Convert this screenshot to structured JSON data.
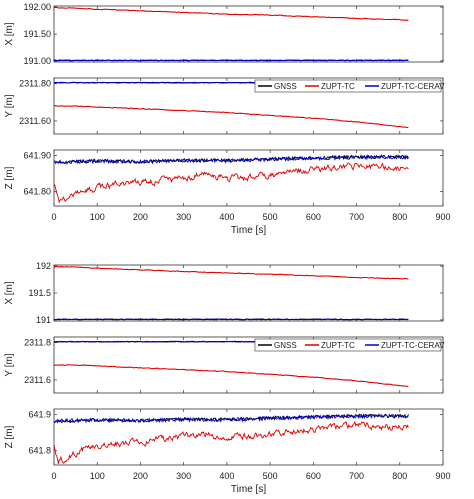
{
  "chart_data": [
    {
      "type": "line",
      "name": "top-figure",
      "xlabel": "Time [s]",
      "xlim": [
        0,
        900
      ],
      "xticks": [
        "0",
        "100",
        "200",
        "300",
        "400",
        "500",
        "600",
        "700",
        "800",
        "900"
      ],
      "legend": {
        "placement": "top-right-of-y-panel",
        "entries": [
          "GNSS",
          "ZUPT-TC",
          "ZUPT-TC-CERAV"
        ]
      },
      "panels": [
        {
          "ylabel": "X [m]",
          "ylim": [
            190.98,
            192.02
          ],
          "yticks": [
            {
              "v": 192.0,
              "label": "192.00"
            },
            {
              "v": 191.5,
              "label": "191.50"
            },
            {
              "v": 191.0,
              "label": "191.00"
            }
          ],
          "series": [
            {
              "name": "GNSS",
              "color": "#000000",
              "x": [
                0,
                820
              ],
              "y": [
                191.01,
                191.01
              ]
            },
            {
              "name": "ZUPT-TC",
              "color": "#e00000",
              "x": [
                0,
                50,
                100,
                200,
                300,
                400,
                500,
                600,
                700,
                820
              ],
              "y": [
                191.99,
                191.98,
                191.96,
                191.93,
                191.9,
                191.87,
                191.85,
                191.82,
                191.79,
                191.76
              ]
            },
            {
              "name": "ZUPT-TC-CERAV",
              "color": "#0000cc",
              "x": [
                0,
                820
              ],
              "y": [
                191.01,
                191.01
              ]
            }
          ]
        },
        {
          "ylabel": "Y [m]",
          "ylim": [
            2311.53,
            2311.83
          ],
          "yticks": [
            {
              "v": 2311.8,
              "label": "2311.80"
            },
            {
              "v": 2311.6,
              "label": "2311.60"
            }
          ],
          "series": [
            {
              "name": "GNSS",
              "color": "#000000",
              "x": [
                0,
                820
              ],
              "y": [
                2311.805,
                2311.805
              ]
            },
            {
              "name": "ZUPT-TC",
              "color": "#e00000",
              "x": [
                0,
                50,
                100,
                200,
                300,
                400,
                500,
                600,
                700,
                800,
                820
              ],
              "y": [
                2311.68,
                2311.68,
                2311.675,
                2311.665,
                2311.655,
                2311.645,
                2311.63,
                2311.615,
                2311.595,
                2311.57,
                2311.565
              ]
            },
            {
              "name": "ZUPT-TC-CERAV",
              "color": "#0000cc",
              "x": [
                0,
                820
              ],
              "y": [
                2311.805,
                2311.805
              ]
            }
          ]
        },
        {
          "ylabel": "Z [m]",
          "ylim": [
            641.76,
            641.915
          ],
          "yticks": [
            {
              "v": 641.9,
              "label": "641.90"
            },
            {
              "v": 641.8,
              "label": "641.80"
            }
          ],
          "series": [
            {
              "name": "GNSS",
              "color": "#000000",
              "x": [
                0,
                100,
                200,
                300,
                400,
                500,
                600,
                700,
                820
              ],
              "y": [
                641.88,
                641.885,
                641.882,
                641.887,
                641.886,
                641.89,
                641.893,
                641.896,
                641.896
              ]
            },
            {
              "name": "ZUPT-TC",
              "color": "#e00000",
              "x": [
                0,
                10,
                30,
                60,
                100,
                150,
                200,
                250,
                300,
                350,
                400,
                450,
                500,
                550,
                600,
                650,
                700,
                750,
                800,
                820
              ],
              "y": [
                641.82,
                641.77,
                641.78,
                641.8,
                641.81,
                641.82,
                641.825,
                641.83,
                641.84,
                641.845,
                641.835,
                641.84,
                641.845,
                641.855,
                641.86,
                641.865,
                641.87,
                641.868,
                641.866,
                641.865
              ]
            },
            {
              "name": "ZUPT-TC-CERAV",
              "color": "#0000cc",
              "x": [
                0,
                100,
                200,
                300,
                400,
                500,
                600,
                700,
                820
              ],
              "y": [
                641.882,
                641.884,
                641.883,
                641.886,
                641.885,
                641.889,
                641.892,
                641.895,
                641.895
              ]
            }
          ]
        }
      ]
    },
    {
      "type": "line",
      "name": "bottom-figure",
      "xlabel": "Time [s]",
      "xlim": [
        0,
        900
      ],
      "xticks": [
        "0",
        "100",
        "200",
        "300",
        "400",
        "500",
        "600",
        "700",
        "800",
        "900"
      ],
      "legend": {
        "placement": "top-right-of-y-panel",
        "entries": [
          "GNSS",
          "ZUPT-TC",
          "ZUPT-TC-CERAV"
        ]
      },
      "panels": [
        {
          "ylabel": "X [m]",
          "ylim": [
            190.98,
            192.02
          ],
          "yticks": [
            {
              "v": 192.0,
              "label": "192"
            },
            {
              "v": 191.5,
              "label": "191.5"
            },
            {
              "v": 191.0,
              "label": "191"
            }
          ],
          "series": [
            {
              "name": "GNSS",
              "color": "#000000",
              "x": [
                0,
                820
              ],
              "y": [
                191.01,
                191.01
              ]
            },
            {
              "name": "ZUPT-TC",
              "color": "#e00000",
              "x": [
                0,
                50,
                100,
                200,
                300,
                400,
                500,
                600,
                700,
                820
              ],
              "y": [
                191.99,
                191.98,
                191.96,
                191.93,
                191.9,
                191.87,
                191.85,
                191.82,
                191.79,
                191.76
              ]
            },
            {
              "name": "ZUPT-TC-CERAV",
              "color": "#0000cc",
              "x": [
                0,
                820
              ],
              "y": [
                191.01,
                191.01
              ]
            }
          ]
        },
        {
          "ylabel": "Y [m]",
          "ylim": [
            2311.53,
            2311.83
          ],
          "yticks": [
            {
              "v": 2311.8,
              "label": "2311.8"
            },
            {
              "v": 2311.6,
              "label": "2311.6"
            }
          ],
          "series": [
            {
              "name": "GNSS",
              "color": "#000000",
              "x": [
                0,
                820
              ],
              "y": [
                2311.805,
                2311.805
              ]
            },
            {
              "name": "ZUPT-TC",
              "color": "#e00000",
              "x": [
                0,
                50,
                100,
                200,
                300,
                400,
                500,
                600,
                700,
                800,
                820
              ],
              "y": [
                2311.68,
                2311.68,
                2311.675,
                2311.665,
                2311.655,
                2311.645,
                2311.63,
                2311.615,
                2311.595,
                2311.57,
                2311.565
              ]
            },
            {
              "name": "ZUPT-TC-CERAV",
              "color": "#0000cc",
              "x": [
                0,
                820
              ],
              "y": [
                2311.805,
                2311.805
              ]
            }
          ]
        },
        {
          "ylabel": "Z [m]",
          "ylim": [
            641.76,
            641.915
          ],
          "yticks": [
            {
              "v": 641.9,
              "label": "641.9"
            },
            {
              "v": 641.8,
              "label": "641.8"
            }
          ],
          "series": [
            {
              "name": "GNSS",
              "color": "#000000",
              "x": [
                0,
                100,
                200,
                300,
                400,
                500,
                600,
                700,
                820
              ],
              "y": [
                641.88,
                641.885,
                641.882,
                641.887,
                641.886,
                641.89,
                641.893,
                641.896,
                641.896
              ]
            },
            {
              "name": "ZUPT-TC",
              "color": "#e00000",
              "x": [
                0,
                10,
                30,
                60,
                100,
                150,
                200,
                250,
                300,
                350,
                400,
                450,
                500,
                550,
                600,
                650,
                700,
                750,
                800,
                820
              ],
              "y": [
                641.82,
                641.77,
                641.78,
                641.8,
                641.81,
                641.82,
                641.825,
                641.83,
                641.84,
                641.845,
                641.835,
                641.84,
                641.845,
                641.855,
                641.86,
                641.865,
                641.87,
                641.868,
                641.866,
                641.865
              ]
            },
            {
              "name": "ZUPT-TC-CERAV",
              "color": "#0000cc",
              "x": [
                0,
                100,
                200,
                300,
                400,
                500,
                600,
                700,
                820
              ],
              "y": [
                641.882,
                641.884,
                641.883,
                641.886,
                641.885,
                641.889,
                641.892,
                641.895,
                641.895
              ]
            }
          ]
        }
      ]
    }
  ]
}
